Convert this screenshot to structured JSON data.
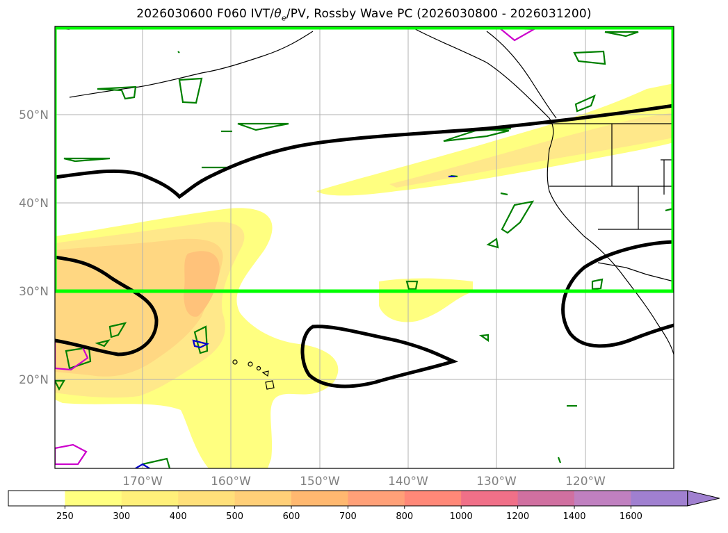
{
  "title": {
    "prefix": "2026030600 F060 IVT/",
    "theta": "θ",
    "theta_sub": "e",
    "suffix": "/PV, Rossby Wave PC (2026030800 - 2026031200)"
  },
  "map": {
    "lat_labels": [
      "50°N",
      "40°N",
      "30°N",
      "20°N"
    ],
    "lon_labels": [
      "170°W",
      "160°W",
      "150°W",
      "140°W",
      "130°W",
      "120°W"
    ],
    "box_color": "#00ff00",
    "pv_contour_color": "#000000",
    "theta_contour_colors": [
      "#008000",
      "#cc00cc",
      "#0000cc"
    ]
  },
  "colorbar": {
    "levels": [
      "250",
      "300",
      "400",
      "500",
      "600",
      "700",
      "800",
      "1000",
      "1200",
      "1400",
      "1600"
    ],
    "colors": [
      "#ffffff",
      "#ffff80",
      "#fff07a",
      "#ffe07a",
      "#ffcf78",
      "#ffb870",
      "#ffa078",
      "#ff8878",
      "#f07088",
      "#d070a0",
      "#c080c0",
      "#a080d0"
    ],
    "extend": "max"
  }
}
